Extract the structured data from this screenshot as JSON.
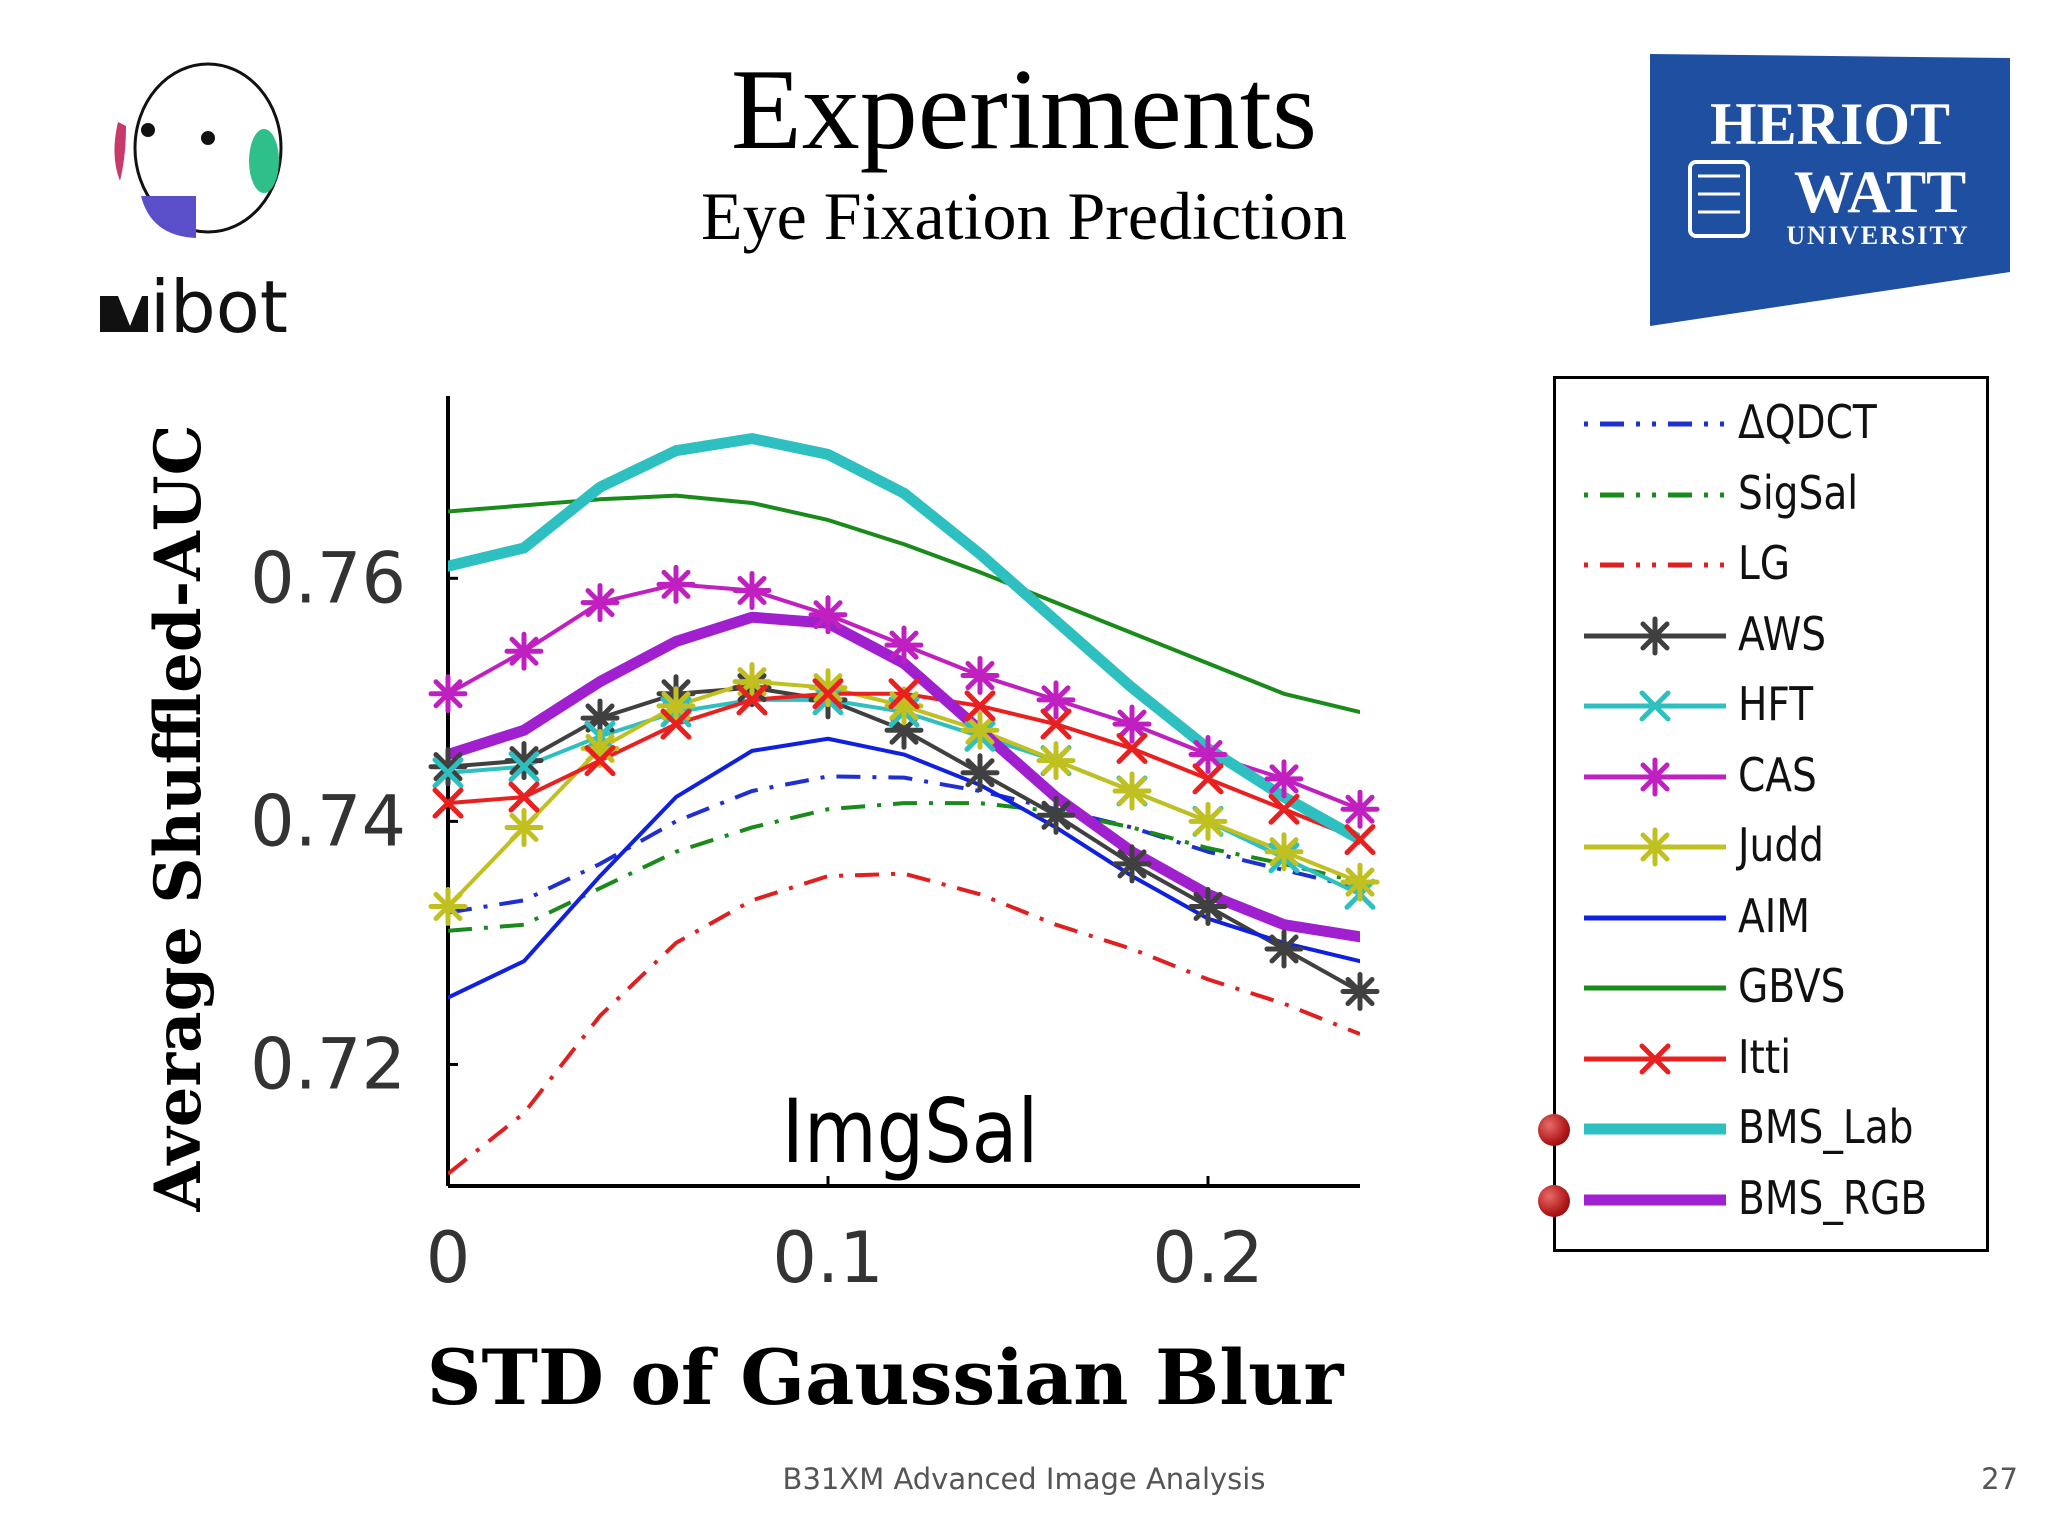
{
  "slide": {
    "title": "Experiments",
    "subtitle": "Eye Fixation Prediction",
    "footer": "B31XM Advanced Image Analysis",
    "page_number": "27"
  },
  "logos": {
    "left_text": "ibot",
    "right_line1": "HERIOT",
    "right_line2": "WATT",
    "right_line3": "UNIVERSITY",
    "right_bg": "#1f4fa0"
  },
  "chart_data": {
    "type": "line",
    "title": "ImgSal",
    "xlabel": "STD of Gaussian Blur",
    "ylabel": "Average Shuffled-AUC",
    "xlim": [
      0,
      0.24
    ],
    "ylim": [
      0.71,
      0.775
    ],
    "xticks": [
      0,
      0.1,
      0.2
    ],
    "xtick_labels": [
      "0",
      "0.1",
      "0.2"
    ],
    "yticks": [
      0.72,
      0.74,
      0.76
    ],
    "ytick_labels": [
      "0.72",
      "0.74",
      "0.76"
    ],
    "legend_position": "right (outside)",
    "x": [
      0,
      0.02,
      0.04,
      0.06,
      0.08,
      0.1,
      0.12,
      0.14,
      0.16,
      0.18,
      0.2,
      0.22,
      0.24
    ],
    "series": [
      {
        "name": "ΔQDCT",
        "color": "#1f2fd0",
        "style": "dashdot",
        "marker": "none",
        "width": 4,
        "values": [
          0.7325,
          0.7335,
          0.7365,
          0.74,
          0.7425,
          0.7437,
          0.7436,
          0.7425,
          0.741,
          0.7395,
          0.7375,
          0.736,
          0.7345
        ]
      },
      {
        "name": "SigSal",
        "color": "#1a8a1a",
        "style": "dashdot",
        "marker": "none",
        "width": 4,
        "values": [
          0.731,
          0.7315,
          0.7345,
          0.7375,
          0.7395,
          0.741,
          0.7415,
          0.7415,
          0.7408,
          0.7395,
          0.7378,
          0.7365,
          0.735
        ]
      },
      {
        "name": "LG",
        "color": "#e02020",
        "style": "dashdot",
        "marker": "none",
        "width": 4,
        "values": [
          0.711,
          0.716,
          0.724,
          0.73,
          0.7335,
          0.7355,
          0.7357,
          0.734,
          0.7315,
          0.7295,
          0.727,
          0.725,
          0.7225
        ]
      },
      {
        "name": "AWS",
        "color": "#404040",
        "style": "solid",
        "marker": "asterisk",
        "width": 4,
        "values": [
          0.7445,
          0.745,
          0.7485,
          0.7505,
          0.751,
          0.75,
          0.7475,
          0.744,
          0.7405,
          0.7365,
          0.733,
          0.7295,
          0.726
        ]
      },
      {
        "name": "HFT",
        "color": "#2ec0c0",
        "style": "solid",
        "marker": "x",
        "width": 4,
        "values": [
          0.744,
          0.7445,
          0.747,
          0.749,
          0.75,
          0.75,
          0.749,
          0.747,
          0.745,
          0.7425,
          0.74,
          0.737,
          0.734
        ]
      },
      {
        "name": "CAS",
        "color": "#c020c0",
        "style": "solid",
        "marker": "asterisk",
        "width": 4,
        "values": [
          0.7505,
          0.754,
          0.758,
          0.7595,
          0.759,
          0.757,
          0.7545,
          0.752,
          0.75,
          0.748,
          0.7455,
          0.7435,
          0.741
        ]
      },
      {
        "name": "Judd",
        "color": "#c0c020",
        "style": "solid",
        "marker": "asterisk",
        "width": 4,
        "values": [
          0.733,
          0.7395,
          0.746,
          0.7495,
          0.7515,
          0.751,
          0.7495,
          0.7475,
          0.745,
          0.7425,
          0.74,
          0.7375,
          0.735
        ]
      },
      {
        "name": "AIM",
        "color": "#1020e0",
        "style": "solid",
        "marker": "none",
        "width": 4,
        "values": [
          0.7255,
          0.7285,
          0.7355,
          0.742,
          0.7458,
          0.7468,
          0.7455,
          0.743,
          0.7395,
          0.7355,
          0.732,
          0.73,
          0.7285
        ]
      },
      {
        "name": "GBVS",
        "color": "#1a8a1a",
        "style": "solid",
        "marker": "none",
        "width": 4,
        "values": [
          0.7655,
          0.766,
          0.7665,
          0.7668,
          0.7662,
          0.7648,
          0.7628,
          0.7605,
          0.758,
          0.7555,
          0.753,
          0.7505,
          0.749
        ]
      },
      {
        "name": "Itti",
        "color": "#e82020",
        "style": "solid",
        "marker": "x",
        "width": 4,
        "values": [
          0.7415,
          0.742,
          0.745,
          0.748,
          0.75,
          0.7505,
          0.7505,
          0.7495,
          0.748,
          0.746,
          0.7435,
          0.741,
          0.7385
        ]
      },
      {
        "name": "BMS_Lab",
        "color": "#2ec0c0",
        "style": "solid",
        "marker": "none",
        "width": 11,
        "values": [
          0.761,
          0.7625,
          0.7675,
          0.7705,
          0.7715,
          0.7702,
          0.767,
          0.762,
          0.7565,
          0.751,
          0.746,
          0.742,
          0.7385
        ]
      },
      {
        "name": "BMS_RGB",
        "color": "#a020d0",
        "style": "solid",
        "marker": "none",
        "width": 11,
        "values": [
          0.7455,
          0.7475,
          0.7515,
          0.7548,
          0.7568,
          0.7563,
          0.753,
          0.7475,
          0.742,
          0.7375,
          0.734,
          0.7315,
          0.7305
        ]
      }
    ],
    "highlighted_series": [
      "BMS_Lab",
      "BMS_RGB"
    ]
  }
}
